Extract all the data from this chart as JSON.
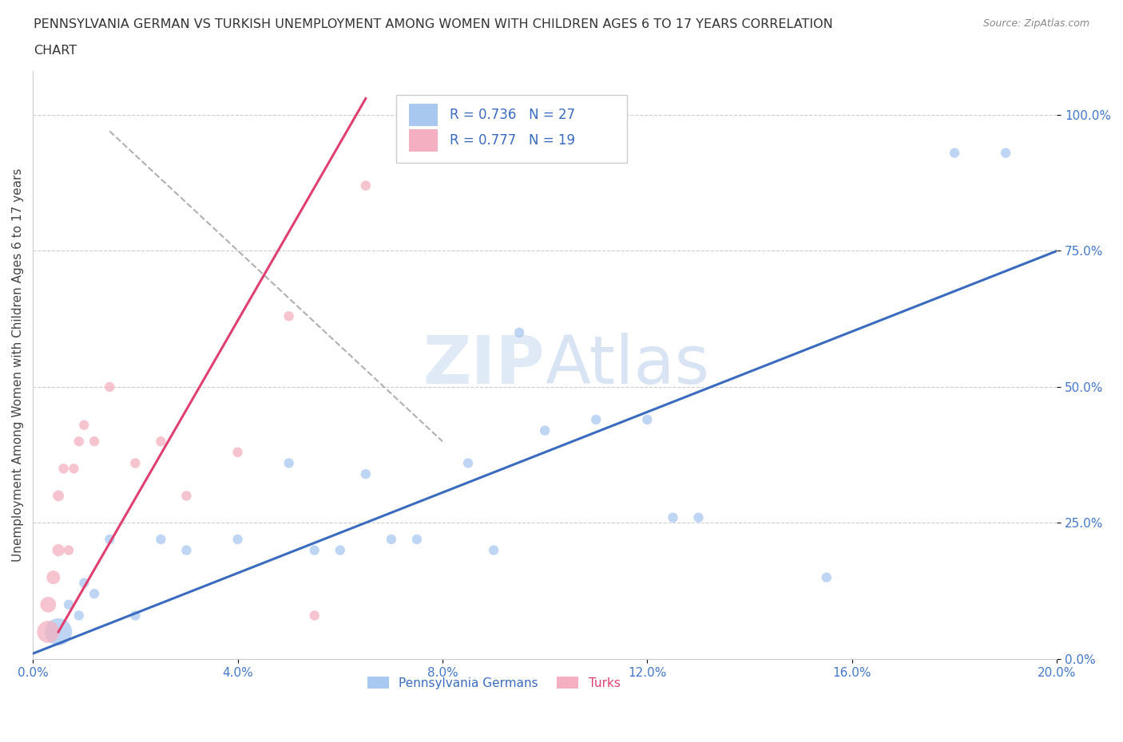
{
  "title_line1": "PENNSYLVANIA GERMAN VS TURKISH UNEMPLOYMENT AMONG WOMEN WITH CHILDREN AGES 6 TO 17 YEARS CORRELATION",
  "title_line2": "CHART",
  "source": "Source: ZipAtlas.com",
  "ylabel": "Unemployment Among Women with Children Ages 6 to 17 years",
  "ytick_labels": [
    "0.0%",
    "25.0%",
    "50.0%",
    "75.0%",
    "100.0%"
  ],
  "ytick_values": [
    0.0,
    0.25,
    0.5,
    0.75,
    1.0
  ],
  "xlim": [
    0.0,
    0.2
  ],
  "ylim": [
    0.0,
    1.08
  ],
  "blue_color": "#a8c8f0",
  "pink_color": "#f4b0c0",
  "blue_line_color": "#3a6bbf",
  "pink_line_color": "#e04070",
  "legend_R_blue": "R = 0.736",
  "legend_N_blue": "N = 27",
  "legend_R_pink": "R = 0.777",
  "legend_N_pink": "N = 19",
  "legend_label_blue": "Pennsylvania Germans",
  "legend_label_pink": "Turks",
  "watermark": "ZIPAtlas",
  "blue_scatter_x": [
    0.005,
    0.007,
    0.009,
    0.01,
    0.012,
    0.015,
    0.02,
    0.025,
    0.03,
    0.04,
    0.05,
    0.055,
    0.06,
    0.065,
    0.07,
    0.075,
    0.085,
    0.09,
    0.095,
    0.1,
    0.11,
    0.12,
    0.125,
    0.13,
    0.155,
    0.18,
    0.19
  ],
  "blue_scatter_y": [
    0.05,
    0.1,
    0.08,
    0.14,
    0.12,
    0.22,
    0.08,
    0.22,
    0.2,
    0.22,
    0.36,
    0.2,
    0.2,
    0.34,
    0.22,
    0.22,
    0.36,
    0.2,
    0.6,
    0.42,
    0.44,
    0.44,
    0.26,
    0.26,
    0.15,
    0.93,
    0.93
  ],
  "blue_scatter_sizes": [
    600,
    80,
    80,
    80,
    80,
    80,
    80,
    80,
    80,
    80,
    80,
    80,
    80,
    80,
    80,
    80,
    80,
    80,
    80,
    80,
    80,
    80,
    80,
    80,
    80,
    80,
    80
  ],
  "pink_scatter_x": [
    0.003,
    0.003,
    0.004,
    0.005,
    0.005,
    0.006,
    0.007,
    0.008,
    0.009,
    0.01,
    0.012,
    0.015,
    0.02,
    0.025,
    0.03,
    0.04,
    0.05,
    0.055,
    0.065
  ],
  "pink_scatter_y": [
    0.05,
    0.1,
    0.15,
    0.2,
    0.3,
    0.35,
    0.2,
    0.35,
    0.4,
    0.43,
    0.4,
    0.5,
    0.36,
    0.4,
    0.3,
    0.38,
    0.63,
    0.08,
    0.87
  ],
  "pink_scatter_sizes": [
    400,
    200,
    150,
    120,
    100,
    80,
    80,
    80,
    80,
    80,
    80,
    80,
    80,
    80,
    80,
    80,
    80,
    80,
    80
  ],
  "blue_line_x": [
    0.0,
    0.2
  ],
  "blue_line_y": [
    0.01,
    0.75
  ],
  "pink_line_x": [
    0.005,
    0.065
  ],
  "pink_line_y": [
    0.05,
    1.03
  ],
  "dashed_line_x": [
    0.015,
    0.08
  ],
  "dashed_line_y": [
    0.97,
    0.4
  ],
  "background_color": "#ffffff",
  "grid_color": "#cccccc",
  "tick_color": "#4477cc"
}
